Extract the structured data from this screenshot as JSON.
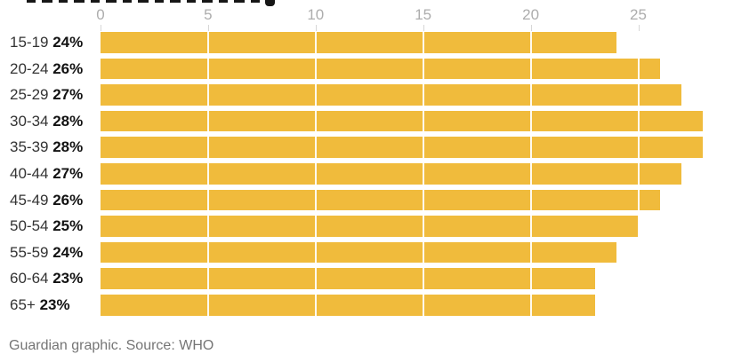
{
  "chart_data": {
    "type": "bar",
    "orientation": "horizontal",
    "categories": [
      "15-19",
      "20-24",
      "25-29",
      "30-34",
      "35-39",
      "40-44",
      "45-49",
      "50-54",
      "55-59",
      "60-64",
      "65+"
    ],
    "values": [
      24,
      26,
      27,
      28,
      28,
      27,
      26,
      25,
      24,
      23,
      23
    ],
    "value_labels": [
      "24%",
      "26%",
      "27%",
      "28%",
      "28%",
      "27%",
      "26%",
      "25%",
      "24%",
      "23%",
      "23%"
    ],
    "unit": "%",
    "x_ticks": [
      0,
      5,
      10,
      15,
      20,
      25
    ],
    "xlim": [
      0,
      28
    ],
    "grid": true,
    "legend": false,
    "bar_color": "#f0bb3c"
  },
  "footer": {
    "text": "Guardian graphic. Source: WHO"
  },
  "colors": {
    "bar": "#f0bb3c",
    "axis_label": "#adadad",
    "tick_mark": "#d7d7d7",
    "row_label": "#333333",
    "value_label": "#121212",
    "footer": "#757575",
    "background": "#ffffff"
  }
}
